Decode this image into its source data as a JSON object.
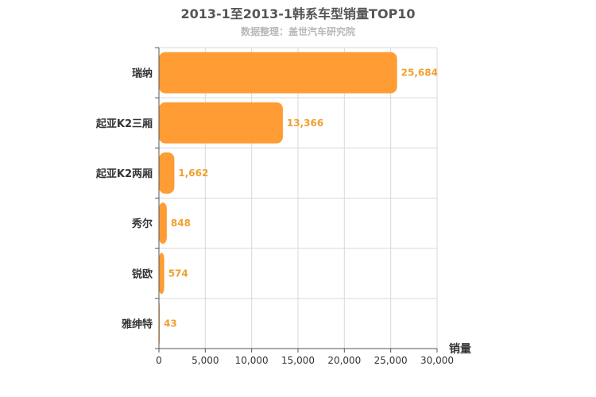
{
  "chart_data": {
    "type": "bar",
    "orientation": "horizontal",
    "title": "2013-1至2013-1韩系车型销量TOP10",
    "subtitle": "数据整理：盖世汽车研究院",
    "xlabel": "销量",
    "categories": [
      "瑞纳",
      "起亚K2三厢",
      "起亚K2两厢",
      "秀尔",
      "锐欧",
      "雅绅特"
    ],
    "values": [
      25684,
      13366,
      1662,
      848,
      574,
      43
    ],
    "value_labels": [
      "25,684",
      "13,366",
      "1,662",
      "848",
      "574",
      "43"
    ],
    "xlim": [
      0,
      30000
    ],
    "xticks": [
      0,
      5000,
      10000,
      15000,
      20000,
      25000,
      30000
    ],
    "xtick_labels": [
      "0",
      "5,000",
      "10,000",
      "15,000",
      "20,000",
      "25,000",
      "30,000"
    ],
    "grid": true,
    "colors": {
      "bar": "#ff9c33",
      "data_label": "#f0a030",
      "grid": "#d9d9d9",
      "axis": "#555555"
    }
  }
}
